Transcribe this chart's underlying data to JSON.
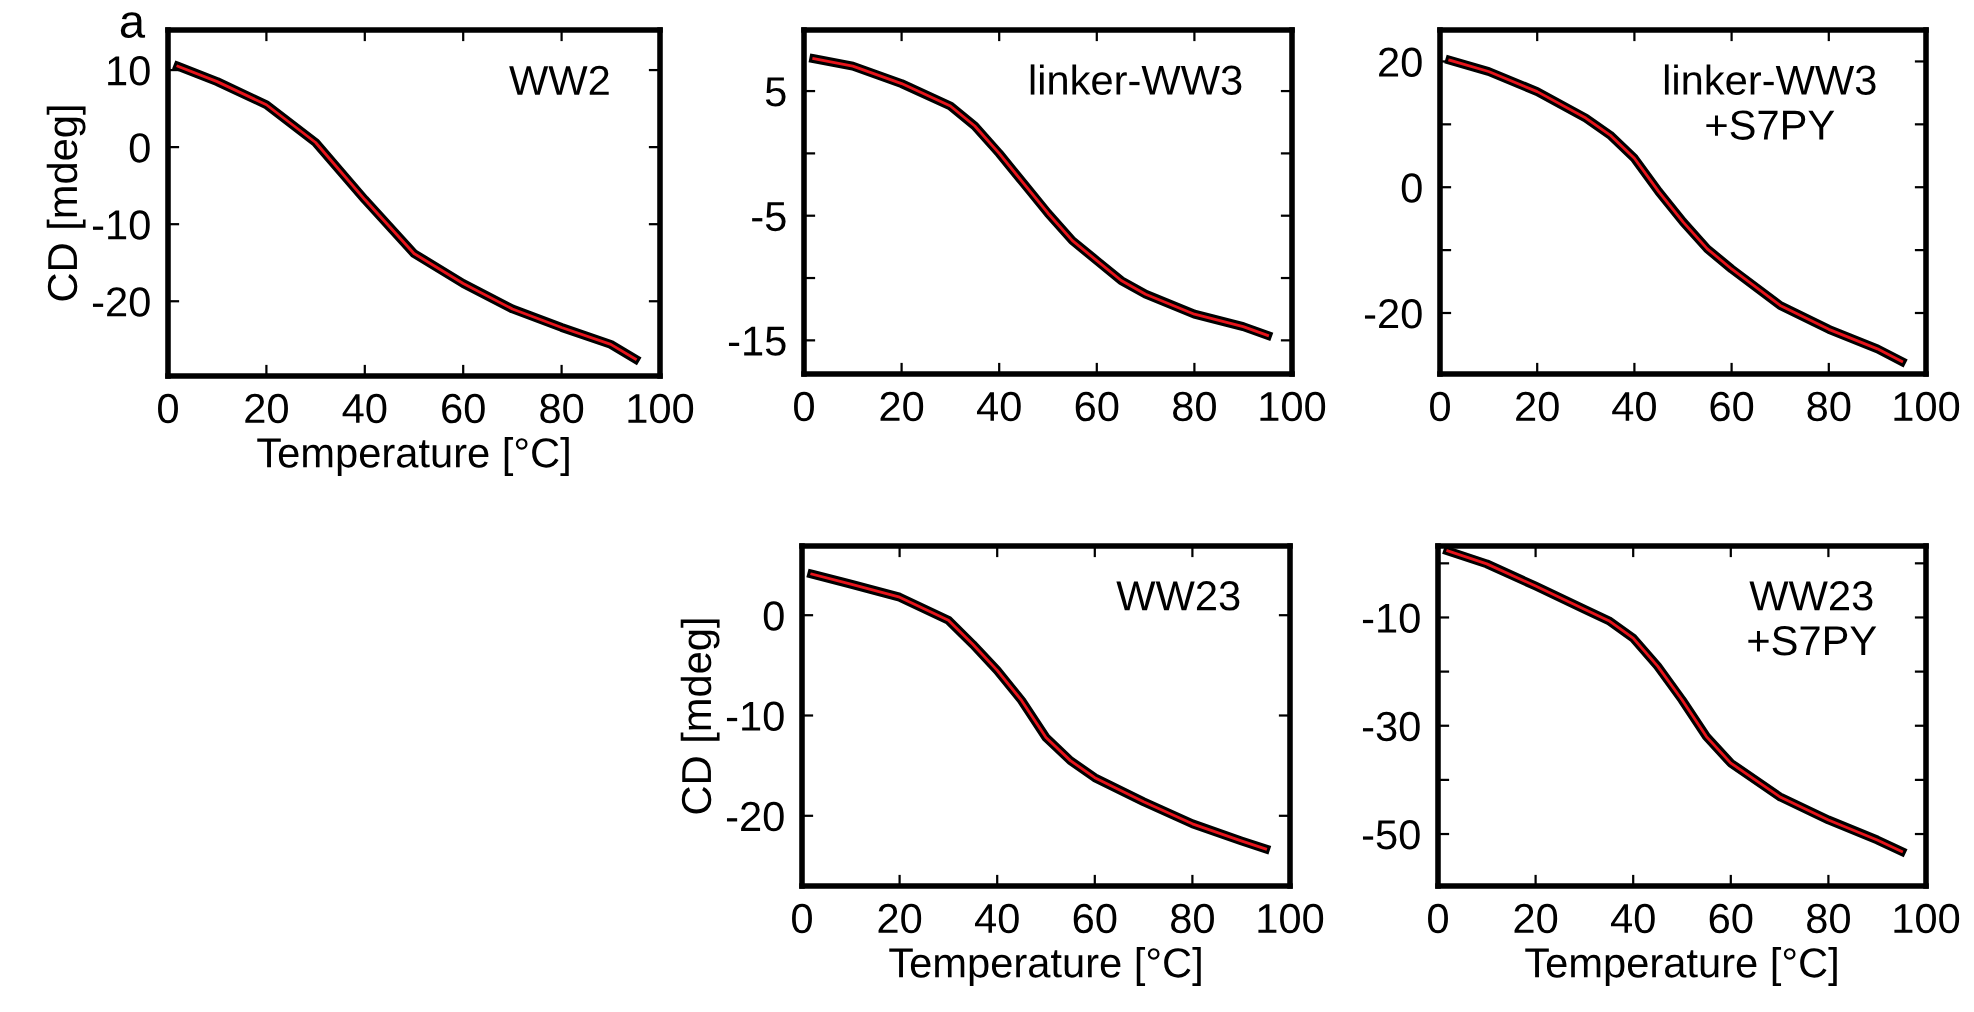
{
  "chart_data": [
    {
      "type": "line",
      "title": "a",
      "xlabel": "Temperature [°C]",
      "ylabel": "CD [mdeg]",
      "annotations": [
        "WW2"
      ],
      "xlim": [
        0,
        100
      ],
      "xticks": [
        0,
        20,
        40,
        60,
        80,
        100
      ],
      "ylim": [
        -29.7,
        15.2
      ],
      "yticks": [
        -20,
        -10,
        0,
        10
      ],
      "grid": false,
      "legend": false,
      "x": [
        2,
        10,
        20,
        30,
        40,
        50,
        60,
        70,
        80,
        90,
        95
      ],
      "series": [
        {
          "color": "#000000",
          "values": [
            10.5,
            8.5,
            5.5,
            0.6,
            -6.8,
            -13.8,
            -17.7,
            -21,
            -23.4,
            -25.6,
            -27.5
          ]
        },
        {
          "color": "#e8141b",
          "values": [
            10.5,
            8.5,
            5.5,
            0.6,
            -6.8,
            -13.8,
            -17.7,
            -21,
            -23.4,
            -25.6,
            -27.5
          ]
        }
      ]
    },
    {
      "type": "line",
      "annotations": [
        "linker-WW3"
      ],
      "xlim": [
        0,
        100
      ],
      "xticks": [
        0,
        20,
        40,
        60,
        80,
        100
      ],
      "ylim": [
        -17.7,
        9.9
      ],
      "yticks": [
        -15,
        {
          "value": -10,
          "label": null
        },
        -5,
        {
          "value": 0,
          "label": null
        },
        5
      ],
      "grid": false,
      "legend": false,
      "x": [
        2,
        10,
        20,
        30,
        35,
        40,
        45,
        50,
        55,
        60,
        65,
        70,
        80,
        90,
        95
      ],
      "series": [
        {
          "color": "#000000",
          "values": [
            7.6,
            7.0,
            5.6,
            3.8,
            2.2,
            0,
            -2.4,
            -4.8,
            -7,
            -8.6,
            -10.2,
            -11.3,
            -12.9,
            -13.9,
            -14.6
          ]
        },
        {
          "color": "#e8141b",
          "values": [
            7.6,
            7.0,
            5.6,
            3.8,
            2.2,
            0,
            -2.4,
            -4.8,
            -7,
            -8.6,
            -10.2,
            -11.3,
            -12.9,
            -13.9,
            -14.6
          ]
        }
      ]
    },
    {
      "type": "line",
      "annotations": [
        "linker-WW3\n+S7PY"
      ],
      "xlim": [
        0,
        100
      ],
      "xticks": [
        0,
        20,
        40,
        60,
        80,
        100
      ],
      "ylim": [
        -29.7,
        25
      ],
      "yticks": [
        -20,
        {
          "value": -10,
          "label": null
        },
        0,
        {
          "value": 10,
          "label": null
        },
        20
      ],
      "grid": false,
      "legend": false,
      "x": [
        2,
        10,
        20,
        30,
        35,
        40,
        45,
        50,
        55,
        60,
        70,
        80,
        90,
        95
      ],
      "series": [
        {
          "color": "#000000",
          "values": [
            20.2,
            18.4,
            15.2,
            11,
            8.3,
            4.6,
            -0.7,
            -5.5,
            -9.8,
            -13,
            -18.8,
            -22.6,
            -25.7,
            -27.7
          ]
        },
        {
          "color": "#e8141b",
          "values": [
            20.2,
            18.4,
            15.2,
            11,
            8.3,
            4.6,
            -0.7,
            -5.5,
            -9.8,
            -13,
            -18.8,
            -22.6,
            -25.7,
            -27.7
          ]
        }
      ]
    },
    {
      "type": "line",
      "xlabel": "Temperature [°C]",
      "ylabel": "CD [mdeg]",
      "annotations": [
        "WW23"
      ],
      "xlim": [
        0,
        100
      ],
      "xticks": [
        0,
        20,
        40,
        60,
        80,
        100
      ],
      "ylim": [
        -27,
        6.9
      ],
      "yticks": [
        -20,
        -10,
        0
      ],
      "grid": false,
      "legend": false,
      "x": [
        2,
        10,
        20,
        30,
        35,
        40,
        45,
        50,
        55,
        60,
        70,
        80,
        90,
        95
      ],
      "series": [
        {
          "color": "#000000",
          "values": [
            4.1,
            3.1,
            1.8,
            -0.5,
            -2.9,
            -5.5,
            -8.5,
            -12.2,
            -14.5,
            -16.2,
            -18.6,
            -20.8,
            -22.5,
            -23.3
          ]
        },
        {
          "color": "#e8141b",
          "values": [
            4.1,
            3.1,
            1.8,
            -0.5,
            -2.9,
            -5.5,
            -8.5,
            -12.2,
            -14.5,
            -16.2,
            -18.6,
            -20.8,
            -22.5,
            -23.3
          ]
        }
      ]
    },
    {
      "type": "line",
      "xlabel": "Temperature [°C]",
      "annotations": [
        "WW23\n+S7PY"
      ],
      "xlim": [
        0,
        100
      ],
      "xticks": [
        0,
        20,
        40,
        60,
        80,
        100
      ],
      "ylim": [
        -59.6,
        3.2
      ],
      "yticks": [
        -50,
        {
          "value": -40,
          "label": null
        },
        -30,
        {
          "value": -20,
          "label": null
        },
        -10,
        {
          "value": 0,
          "label": null
        }
      ],
      "grid": false,
      "legend": false,
      "x": [
        2,
        10,
        20,
        30,
        35,
        40,
        45,
        50,
        55,
        60,
        70,
        80,
        90,
        95
      ],
      "series": [
        {
          "color": "#000000",
          "values": [
            2.3,
            -0.1,
            -4.2,
            -8.5,
            -10.6,
            -13.8,
            -19,
            -25.2,
            -32,
            -36.9,
            -43.1,
            -47.4,
            -51.1,
            -53.2
          ]
        },
        {
          "color": "#e8141b",
          "values": [
            2.3,
            -0.1,
            -4.2,
            -8.5,
            -10.6,
            -13.8,
            -19,
            -25.2,
            -32,
            -36.9,
            -43.1,
            -47.4,
            -51.1,
            -53.2
          ]
        }
      ]
    }
  ]
}
